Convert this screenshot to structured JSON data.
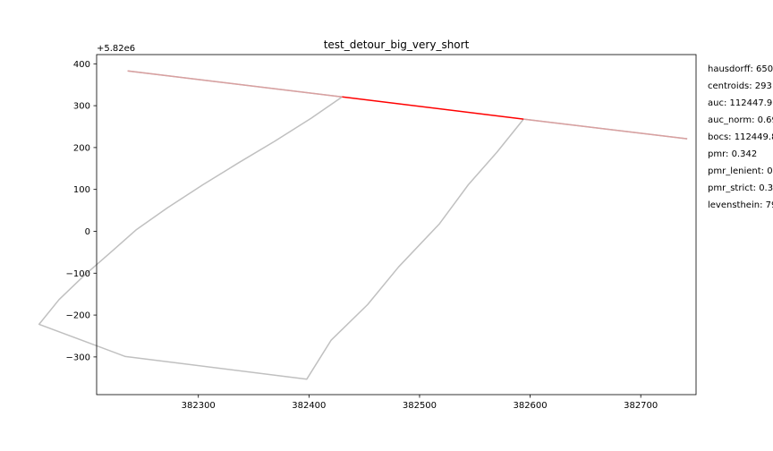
{
  "chart_data": {
    "type": "line",
    "title": "test_detour_big_very_short",
    "xlabel": "",
    "ylabel": "",
    "y_offset_label": "+5.82e6",
    "xlim": [
      382208,
      382750
    ],
    "ylim": [
      -390,
      422
    ],
    "x_ticks": [
      {
        "value": 382300,
        "label": "382300"
      },
      {
        "value": 382400,
        "label": "382400"
      },
      {
        "value": 382500,
        "label": "382500"
      },
      {
        "value": 382600,
        "label": "382600"
      },
      {
        "value": 382700,
        "label": "382700"
      }
    ],
    "y_ticks": [
      {
        "value": 400,
        "label": "400"
      },
      {
        "value": 300,
        "label": "300"
      },
      {
        "value": 200,
        "label": "200"
      },
      {
        "value": 100,
        "label": "100"
      },
      {
        "value": 0,
        "label": "0"
      },
      {
        "value": -100,
        "label": "−100"
      },
      {
        "value": -200,
        "label": "−200"
      },
      {
        "value": -300,
        "label": "−300"
      }
    ],
    "grid": false,
    "series": [
      {
        "color": "#c0c0c0",
        "x": [
          382236,
          382430,
          382402,
          382369,
          382336,
          382304,
          382272,
          382244,
          382220,
          382197,
          382174,
          382156,
          382234,
          382398,
          382420,
          382453,
          382481,
          382518,
          382544,
          382570,
          382594,
          382742
        ],
        "y": [
          383,
          321,
          270,
          215,
          163,
          111,
          56,
          4,
          -52,
          -105,
          -163,
          -222,
          -299,
          -353,
          -260,
          -175,
          -85,
          18,
          111,
          189,
          268,
          221
        ]
      },
      {
        "color": "#ff0000",
        "x": [
          382430,
          382594
        ],
        "y": [
          321,
          268
        ]
      },
      {
        "color": "#d9a0a0",
        "x": [
          382236,
          382430
        ],
        "y": [
          383,
          321
        ]
      },
      {
        "color": "#d9a0a0",
        "x": [
          382594,
          382742
        ],
        "y": [
          268,
          221
        ]
      }
    ]
  },
  "metrics": [
    "hausdorff: 650",
    "centroids: 293",
    "auc: 112447.9",
    "auc_norm: 0.69",
    "bocs: 112449.8",
    "pmr: 0.342",
    "pmr_lenient: 0",
    "pmr_strict: 0.3",
    "levensthein: 79"
  ]
}
